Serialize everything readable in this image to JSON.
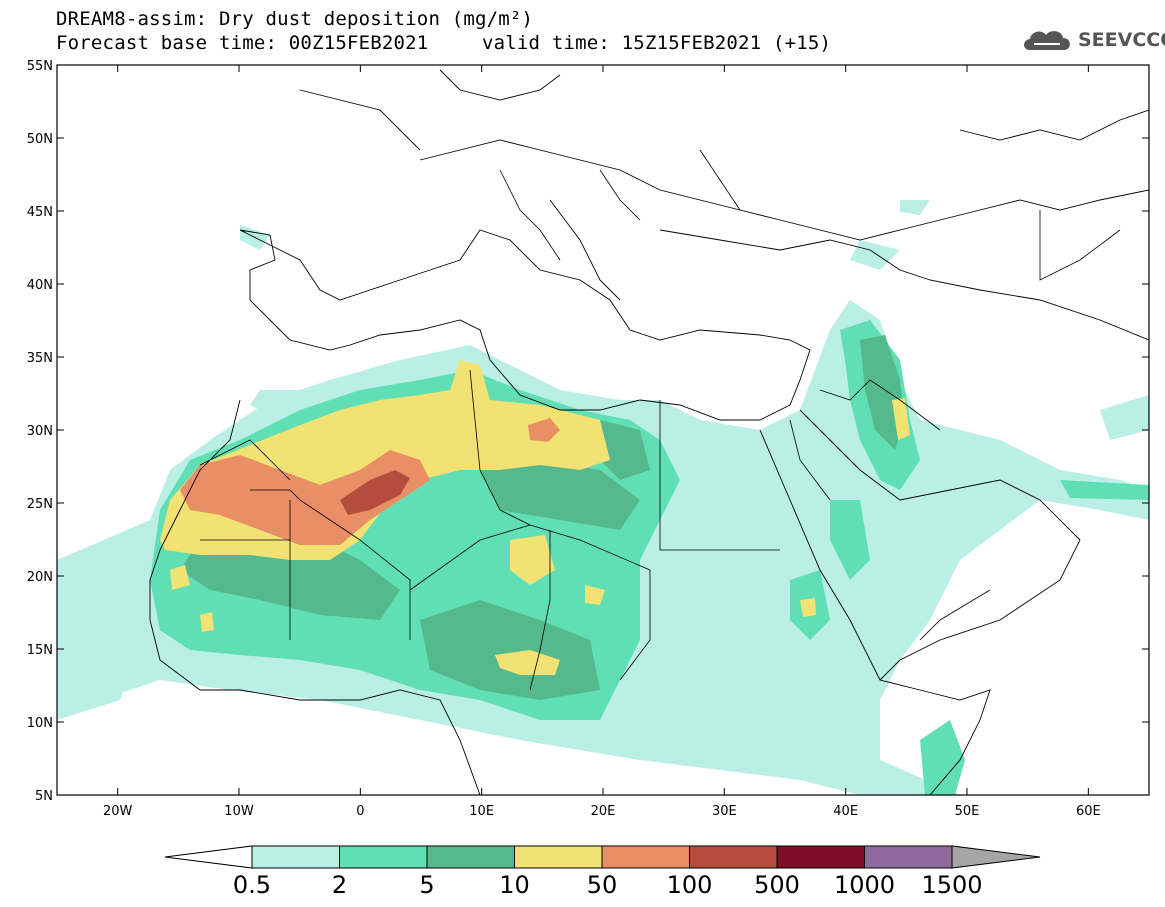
{
  "title": {
    "line1": "DREAM8-assim: Dry dust deposition (mg/m²)",
    "line2a": "Forecast base time: 00Z15FEB2021",
    "line2b": "valid time: 15Z15FEB2021 (+15)"
  },
  "logo": {
    "text": "SEEVCCC",
    "icon": "cloud-icon"
  },
  "map": {
    "lon_range": [
      -25,
      65
    ],
    "lat_range": [
      5,
      55
    ],
    "lat_ticks": [
      "55N",
      "50N",
      "45N",
      "40N",
      "35N",
      "30N",
      "25N",
      "20N",
      "15N",
      "10N",
      "5N"
    ],
    "lat_values": [
      55,
      50,
      45,
      40,
      35,
      30,
      25,
      20,
      15,
      10,
      5
    ],
    "lon_ticks": [
      "20W",
      "10W",
      "0",
      "10E",
      "20E",
      "30E",
      "40E",
      "50E",
      "60E"
    ],
    "lon_values": [
      -20,
      -10,
      0,
      10,
      20,
      30,
      40,
      50,
      60
    ]
  },
  "colorbar": {
    "labels": [
      "0.5",
      "2",
      "5",
      "10",
      "50",
      "100",
      "500",
      "1000",
      "1500"
    ],
    "colors": [
      "#b9efe4",
      "#5fdfb3",
      "#55b98e",
      "#f2e173",
      "#e98f66",
      "#b54d3f",
      "#7c0f27",
      "#8f6a9c",
      "#a6a6a6"
    ]
  }
}
